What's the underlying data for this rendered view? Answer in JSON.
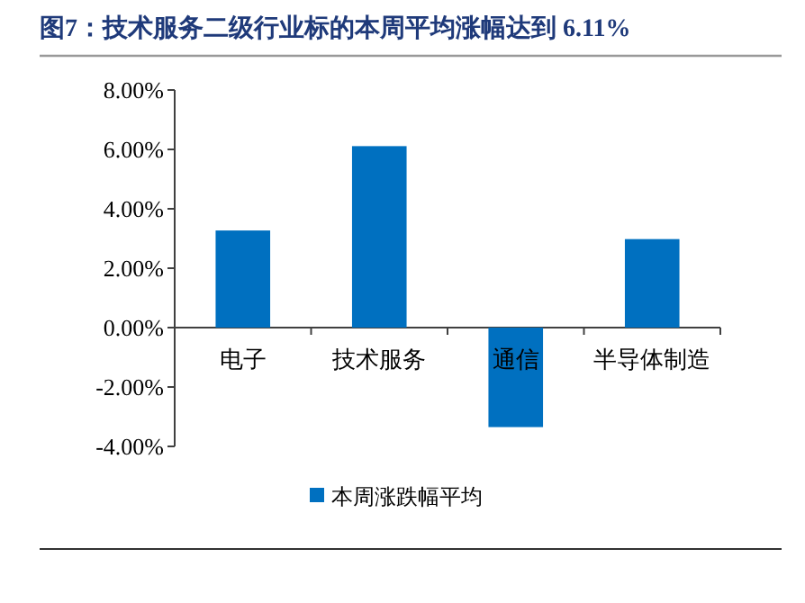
{
  "chart_data": {
    "type": "bar",
    "title": "图7：技术服务二级行业标的本周平均涨幅达到 6.11%",
    "categories": [
      "电子",
      "技术服务",
      "通信",
      "半导体制造"
    ],
    "series": [
      {
        "name": "本周涨跌幅平均",
        "color": "#0070c0",
        "values": [
          3.27,
          6.11,
          -3.35,
          2.98
        ]
      }
    ],
    "ylim": [
      -4,
      8
    ],
    "yticks": [
      {
        "value": -4,
        "label": "-4.00%"
      },
      {
        "value": -2,
        "label": "-2.00%"
      },
      {
        "value": 0,
        "label": "0.00%"
      },
      {
        "value": 2,
        "label": "2.00%"
      },
      {
        "value": 4,
        "label": "4.00%"
      },
      {
        "value": 6,
        "label": "6.00%"
      },
      {
        "value": 8,
        "label": "8.00%"
      }
    ],
    "legend": "bottom"
  }
}
